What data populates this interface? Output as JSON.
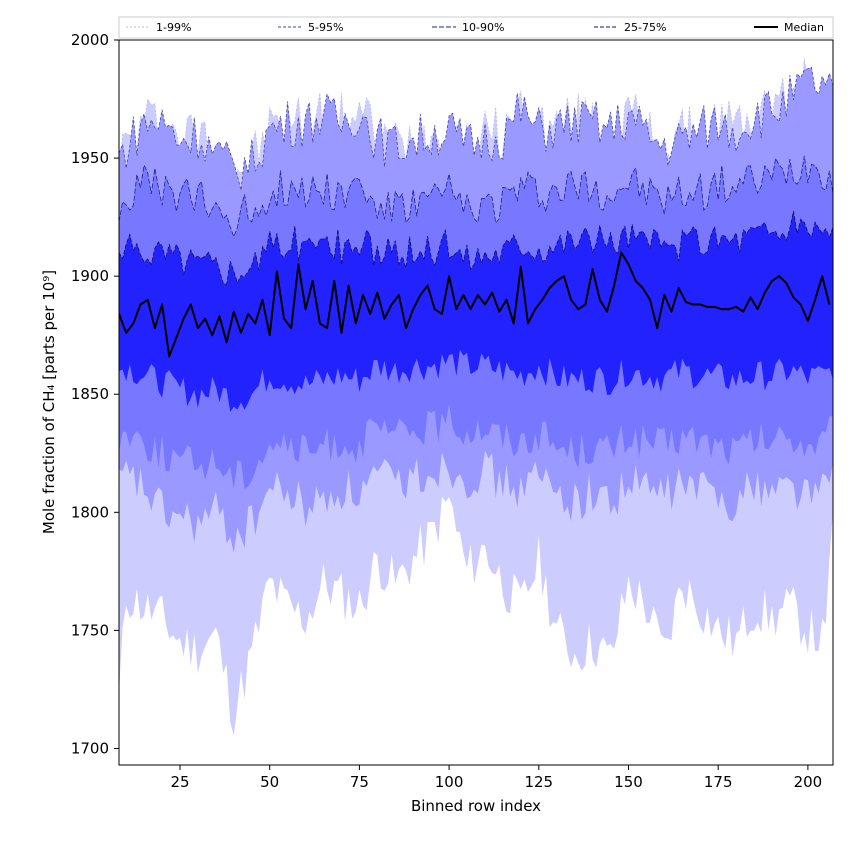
{
  "chart_data": {
    "type": "area",
    "xlabel": "Binned row index",
    "ylabel": "Mole fraction of CH₄ [parts per 10⁹]",
    "xlim": [
      8,
      207
    ],
    "ylim": [
      1693,
      2000
    ],
    "x_ticks": [
      25,
      50,
      75,
      100,
      125,
      150,
      175,
      200
    ],
    "y_ticks": [
      1700,
      1750,
      1800,
      1850,
      1900,
      1950,
      2000
    ],
    "legend_position": "top",
    "x_anchor": [
      8,
      10,
      15,
      20,
      25,
      30,
      35,
      40,
      45,
      50,
      55,
      60,
      65,
      70,
      75,
      80,
      85,
      90,
      95,
      100,
      105,
      110,
      115,
      120,
      125,
      130,
      135,
      140,
      145,
      150,
      155,
      160,
      165,
      170,
      175,
      180,
      185,
      190,
      195,
      200,
      205,
      207
    ],
    "bands": [
      {
        "name": "1-99%",
        "color": "#ccccff",
        "edge_color": "#b8b8f0",
        "dash": "2,2",
        "lower": [
          1720,
          1765,
          1760,
          1755,
          1745,
          1742,
          1748,
          1715,
          1740,
          1770,
          1760,
          1755,
          1770,
          1765,
          1760,
          1780,
          1770,
          1780,
          1790,
          1805,
          1775,
          1785,
          1770,
          1760,
          1780,
          1750,
          1740,
          1745,
          1738,
          1770,
          1760,
          1740,
          1770,
          1760,
          1750,
          1745,
          1760,
          1755,
          1760,
          1750,
          1745,
          1805
        ],
        "upper": [
          1950,
          1955,
          1965,
          1965,
          1958,
          1960,
          1952,
          1945,
          1948,
          1962,
          1965,
          1965,
          1968,
          1965,
          1970,
          1958,
          1955,
          1958,
          1960,
          1962,
          1955,
          1958,
          1960,
          1970,
          1962,
          1963,
          1965,
          1965,
          1962,
          1968,
          1960,
          1955,
          1958,
          1962,
          1965,
          1962,
          1968,
          1970,
          1975,
          1982,
          1980,
          1975
        ]
      },
      {
        "name": "5-95%",
        "color": "#9999ff",
        "edge_color": "#4444aa",
        "dash": "3,2",
        "lower": [
          1810,
          1815,
          1810,
          1800,
          1798,
          1795,
          1800,
          1790,
          1795,
          1810,
          1808,
          1802,
          1805,
          1810,
          1808,
          1815,
          1812,
          1815,
          1818,
          1820,
          1815,
          1818,
          1812,
          1810,
          1815,
          1808,
          1805,
          1808,
          1805,
          1812,
          1810,
          1808,
          1812,
          1810,
          1808,
          1805,
          1812,
          1810,
          1812,
          1808,
          1810,
          1820
        ]
      },
      {
        "name": "10-90%",
        "color": "#7777ff",
        "edge_color": "#22228a",
        "dash": "5,2",
        "lower": [
          1830,
          1835,
          1830,
          1825,
          1822,
          1820,
          1822,
          1815,
          1818,
          1830,
          1828,
          1825,
          1828,
          1830,
          1828,
          1835,
          1832,
          1835,
          1836,
          1838,
          1835,
          1836,
          1832,
          1830,
          1834,
          1828,
          1826,
          1828,
          1826,
          1832,
          1830,
          1828,
          1832,
          1830,
          1828,
          1826,
          1830,
          1830,
          1832,
          1828,
          1830,
          1836
        ],
        "upper": [
          1930,
          1932,
          1940,
          1935,
          1935,
          1932,
          1928,
          1925,
          1928,
          1935,
          1938,
          1936,
          1938,
          1935,
          1938,
          1930,
          1928,
          1930,
          1932,
          1935,
          1928,
          1930,
          1932,
          1938,
          1935,
          1936,
          1938,
          1938,
          1935,
          1940,
          1935,
          1932,
          1935,
          1936,
          1938,
          1938,
          1940,
          1942,
          1945,
          1948,
          1945,
          1940
        ]
      },
      {
        "name": "25-75%",
        "color": "#2222ff",
        "edge_color": "#111166",
        "dash": "4,2",
        "lower": [
          1860,
          1862,
          1858,
          1855,
          1852,
          1850,
          1852,
          1848,
          1850,
          1858,
          1856,
          1854,
          1856,
          1858,
          1856,
          1862,
          1860,
          1862,
          1862,
          1864,
          1862,
          1862,
          1860,
          1858,
          1862,
          1857,
          1856,
          1857,
          1856,
          1860,
          1858,
          1857,
          1860,
          1858,
          1857,
          1856,
          1858,
          1858,
          1860,
          1857,
          1858,
          1862
        ],
        "upper": [
          1908,
          1910,
          1912,
          1910,
          1908,
          1906,
          1905,
          1903,
          1905,
          1912,
          1915,
          1913,
          1914,
          1912,
          1914,
          1910,
          1908,
          1910,
          1911,
          1913,
          1908,
          1910,
          1911,
          1915,
          1913,
          1914,
          1916,
          1916,
          1914,
          1918,
          1914,
          1912,
          1914,
          1915,
          1916,
          1916,
          1918,
          1919,
          1920,
          1922,
          1920,
          1918
        ]
      }
    ],
    "series": [
      {
        "name": "Median",
        "color": "#000000",
        "x": [
          8,
          10,
          12,
          14,
          16,
          18,
          20,
          22,
          24,
          26,
          28,
          30,
          32,
          34,
          36,
          38,
          40,
          42,
          44,
          46,
          48,
          50,
          52,
          54,
          56,
          58,
          60,
          62,
          64,
          66,
          68,
          70,
          72,
          74,
          76,
          78,
          80,
          82,
          84,
          86,
          88,
          90,
          92,
          94,
          96,
          98,
          100,
          102,
          104,
          106,
          108,
          110,
          112,
          114,
          116,
          118,
          120,
          122,
          124,
          126,
          128,
          130,
          132,
          134,
          136,
          138,
          140,
          142,
          144,
          146,
          148,
          150,
          152,
          154,
          156,
          158,
          160,
          162,
          164,
          166,
          168,
          170,
          172,
          174,
          176,
          178,
          180,
          182,
          184,
          186,
          188,
          190,
          192,
          194,
          196,
          198,
          200,
          202,
          204,
          206
        ],
        "values": [
          1884,
          1876,
          1880,
          1888,
          1890,
          1878,
          1888,
          1866,
          1874,
          1882,
          1888,
          1878,
          1882,
          1875,
          1883,
          1872,
          1885,
          1876,
          1884,
          1880,
          1890,
          1875,
          1902,
          1882,
          1878,
          1905,
          1886,
          1898,
          1880,
          1878,
          1898,
          1876,
          1896,
          1880,
          1892,
          1884,
          1893,
          1882,
          1888,
          1892,
          1878,
          1886,
          1892,
          1896,
          1886,
          1884,
          1900,
          1886,
          1892,
          1886,
          1892,
          1888,
          1893,
          1885,
          1890,
          1880,
          1904,
          1880,
          1886,
          1890,
          1895,
          1898,
          1900,
          1890,
          1886,
          1888,
          1903,
          1890,
          1885,
          1896,
          1910,
          1905,
          1898,
          1895,
          1890,
          1878,
          1892,
          1885,
          1895,
          1889,
          1888,
          1888,
          1887,
          1887,
          1886,
          1886,
          1887,
          1885,
          1891,
          1886,
          1893,
          1898,
          1900,
          1897,
          1891,
          1888,
          1881,
          1890,
          1900,
          1888
        ]
      }
    ]
  }
}
